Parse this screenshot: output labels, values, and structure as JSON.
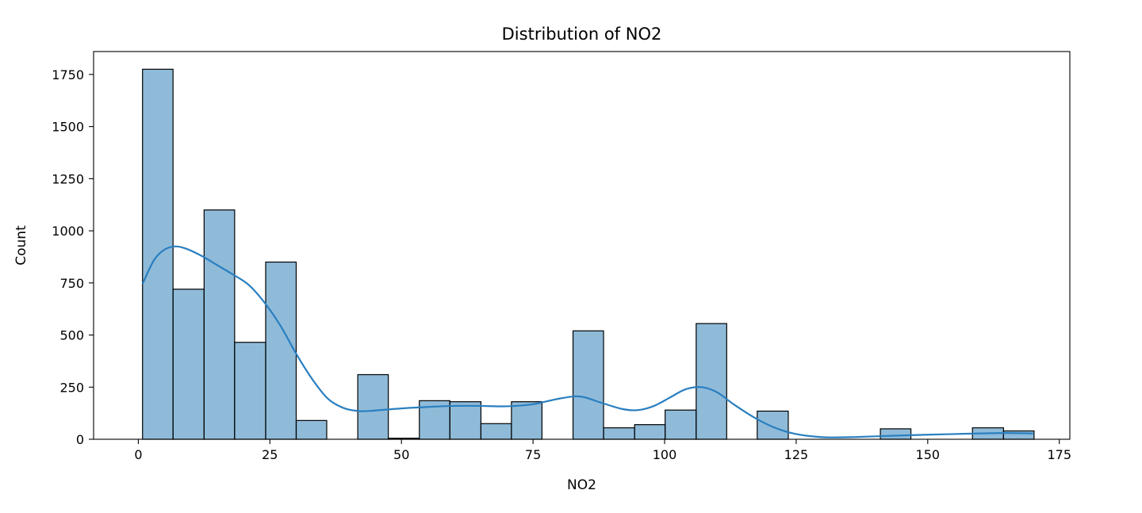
{
  "chart_data": {
    "type": "bar",
    "title": "Distribution of NO2",
    "xlabel": "NO2",
    "ylabel": "Count",
    "xlim": [
      -8.5,
      177
    ],
    "ylim": [
      0,
      1860
    ],
    "xticks": [
      0,
      25,
      50,
      75,
      100,
      125,
      150,
      175
    ],
    "yticks": [
      0,
      250,
      500,
      750,
      1000,
      1250,
      1500,
      1750
    ],
    "grid": false,
    "bar_color": "#1f77b4",
    "bar_opacity": 0.5,
    "kde_color": "#2a7fc0",
    "bins": [
      {
        "x0": 0.8,
        "x1": 6.6,
        "count": 1775
      },
      {
        "x0": 6.6,
        "x1": 12.5,
        "count": 720
      },
      {
        "x0": 12.5,
        "x1": 18.3,
        "count": 1100
      },
      {
        "x0": 18.3,
        "x1": 24.2,
        "count": 465
      },
      {
        "x0": 24.2,
        "x1": 30.0,
        "count": 850
      },
      {
        "x0": 30.0,
        "x1": 35.8,
        "count": 90
      },
      {
        "x0": 35.8,
        "x1": 41.7,
        "count": 0
      },
      {
        "x0": 41.7,
        "x1": 47.5,
        "count": 310
      },
      {
        "x0": 47.5,
        "x1": 53.4,
        "count": 5
      },
      {
        "x0": 53.4,
        "x1": 59.2,
        "count": 185
      },
      {
        "x0": 59.2,
        "x1": 65.1,
        "count": 180
      },
      {
        "x0": 65.1,
        "x1": 70.9,
        "count": 75
      },
      {
        "x0": 70.9,
        "x1": 76.7,
        "count": 180
      },
      {
        "x0": 76.7,
        "x1": 82.6,
        "count": 0
      },
      {
        "x0": 82.6,
        "x1": 88.4,
        "count": 520
      },
      {
        "x0": 88.4,
        "x1": 94.3,
        "count": 55
      },
      {
        "x0": 94.3,
        "x1": 100.1,
        "count": 70
      },
      {
        "x0": 100.1,
        "x1": 106.0,
        "count": 140
      },
      {
        "x0": 106.0,
        "x1": 111.8,
        "count": 555
      },
      {
        "x0": 111.8,
        "x1": 117.6,
        "count": 0
      },
      {
        "x0": 117.6,
        "x1": 123.5,
        "count": 135
      },
      {
        "x0": 123.5,
        "x1": 129.3,
        "count": 0
      },
      {
        "x0": 129.3,
        "x1": 135.2,
        "count": 0
      },
      {
        "x0": 135.2,
        "x1": 141.0,
        "count": 0
      },
      {
        "x0": 141.0,
        "x1": 146.8,
        "count": 50
      },
      {
        "x0": 146.8,
        "x1": 152.7,
        "count": 0
      },
      {
        "x0": 152.7,
        "x1": 158.5,
        "count": 0
      },
      {
        "x0": 158.5,
        "x1": 164.4,
        "count": 55
      },
      {
        "x0": 164.4,
        "x1": 170.2,
        "count": 40
      }
    ],
    "kde": {
      "x": [
        0.8,
        3,
        5,
        7,
        9,
        12,
        15,
        18,
        21,
        24,
        27,
        30,
        33,
        36,
        39,
        42,
        45,
        50,
        55,
        60,
        65,
        70,
        75,
        80,
        84,
        88,
        92,
        95,
        98,
        101,
        104,
        107,
        110,
        113,
        117,
        121,
        125,
        130,
        135,
        140,
        145,
        150,
        155,
        160,
        165,
        170
      ],
      "y": [
        745,
        860,
        910,
        925,
        915,
        880,
        835,
        790,
        740,
        655,
        545,
        410,
        290,
        195,
        150,
        135,
        138,
        148,
        155,
        160,
        160,
        158,
        168,
        195,
        205,
        175,
        145,
        140,
        160,
        200,
        240,
        250,
        225,
        170,
        105,
        55,
        25,
        10,
        10,
        14,
        18,
        22,
        25,
        28,
        30,
        28
      ]
    }
  }
}
